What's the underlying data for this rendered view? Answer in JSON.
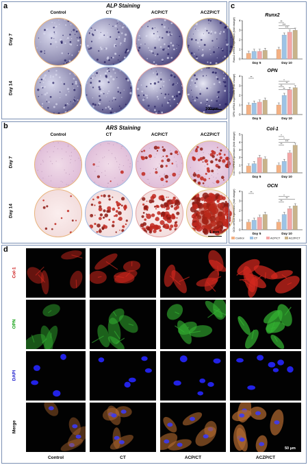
{
  "panels": {
    "a": {
      "letter": "a",
      "title": "ALP Staining",
      "columns": [
        "Control",
        "CT",
        "ACP/CT",
        "ACZP/CT"
      ],
      "rows": [
        "Day 7",
        "Day 14"
      ],
      "scale": "100 μm"
    },
    "b": {
      "letter": "b",
      "title": "ARS Staining",
      "columns": [
        "Control",
        "CT",
        "ACP/CT",
        "ACZP/CT"
      ],
      "rows": [
        "Day 7",
        "Day 14"
      ],
      "scale": "1 mm"
    },
    "c": {
      "letter": "c"
    },
    "d": {
      "letter": "d",
      "rows": [
        "Col-1",
        "OPN",
        "DAPI",
        "Merge"
      ],
      "columns": [
        "Control",
        "CT",
        "ACP/CT",
        "ACZP/CT"
      ],
      "scale": "50 μm"
    }
  },
  "colors": {
    "control": "#f4b183",
    "ct": "#9dc3e6",
    "acp": "#f4a6a6",
    "aczp": "#c9b38a"
  },
  "chart_data": [
    {
      "type": "bar",
      "title": "Runx2",
      "ylabel": "Runx2 mRNA expression (fold change)",
      "categories": [
        "Day 5",
        "Day 10"
      ],
      "ylim": [
        0,
        4
      ],
      "yticks": [
        "0",
        "1",
        "2",
        "3",
        "4"
      ],
      "series": [
        {
          "name": "Control",
          "values": [
            0.6,
            1.0
          ]
        },
        {
          "name": "CT",
          "values": [
            0.8,
            2.5
          ]
        },
        {
          "name": "ACP/CT",
          "values": [
            0.8,
            2.8
          ]
        },
        {
          "name": "ACZP/CT",
          "values": [
            0.9,
            3.0
          ]
        }
      ],
      "significance": [
        "**",
        "***",
        "***"
      ]
    },
    {
      "type": "bar",
      "title": "OPN",
      "ylabel": "OPN mRNA expression (fold change)",
      "categories": [
        "Day 5",
        "Day 10"
      ],
      "ylim": [
        0,
        4
      ],
      "yticks": [
        "0",
        "1",
        "2",
        "3",
        "4"
      ],
      "series": [
        {
          "name": "Control",
          "values": [
            1.0,
            1.0
          ]
        },
        {
          "name": "CT",
          "values": [
            1.2,
            2.0
          ]
        },
        {
          "name": "ACP/CT",
          "values": [
            1.3,
            2.6
          ]
        },
        {
          "name": "ACZP/CT",
          "values": [
            1.5,
            2.8
          ]
        }
      ],
      "significance": [
        "**",
        "*",
        "**",
        "**",
        "**"
      ]
    },
    {
      "type": "bar",
      "title": "Col-1",
      "ylabel": "Col-1 mRNA expression (fold change)",
      "categories": [
        "Day 5",
        "Day 10"
      ],
      "ylim": [
        0,
        5
      ],
      "yticks": [
        "0",
        "1",
        "2",
        "3",
        "4",
        "5"
      ],
      "series": [
        {
          "name": "Control",
          "values": [
            0.9,
            1.0
          ]
        },
        {
          "name": "CT",
          "values": [
            1.2,
            1.5
          ]
        },
        {
          "name": "ACP/CT",
          "values": [
            2.0,
            2.6
          ]
        },
        {
          "name": "ACZP/CT",
          "values": [
            1.8,
            3.6
          ]
        }
      ],
      "significance": [
        "*",
        "*",
        "***",
        "**"
      ]
    },
    {
      "type": "bar",
      "title": "OCN",
      "ylabel": "OCN mRNA expression (fold change)",
      "categories": [
        "Day 5",
        "Day 10"
      ],
      "ylim": [
        0,
        4
      ],
      "yticks": [
        "0",
        "1",
        "2",
        "3",
        "4"
      ],
      "series": [
        {
          "name": "Control",
          "values": [
            0.8,
            0.8
          ]
        },
        {
          "name": "CT",
          "values": [
            1.0,
            1.6
          ]
        },
        {
          "name": "ACP/CT",
          "values": [
            1.3,
            2.2
          ]
        },
        {
          "name": "ACZP/CT",
          "values": [
            1.6,
            2.5
          ]
        }
      ],
      "significance": [
        "**",
        "*",
        "**",
        "**"
      ]
    }
  ],
  "legend": [
    "Control",
    "CT",
    "ACP/CT",
    "ACZP/CT"
  ]
}
